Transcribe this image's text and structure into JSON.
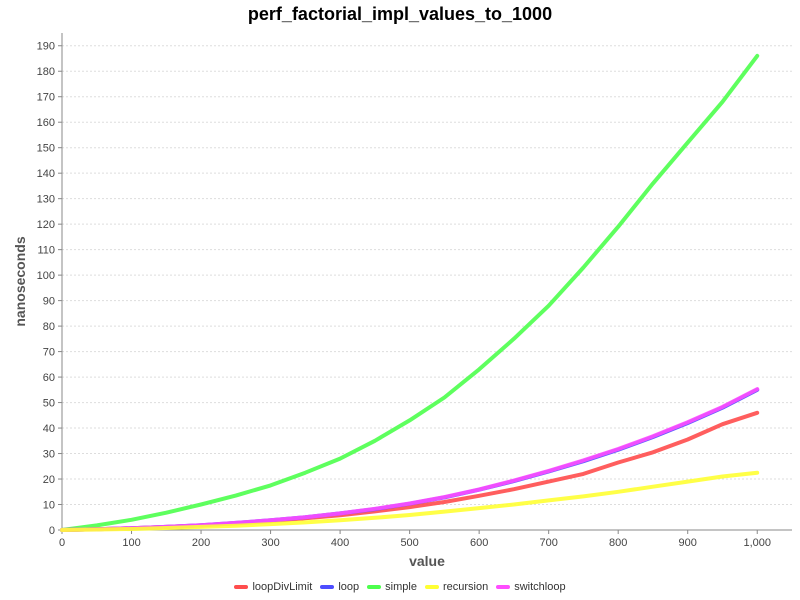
{
  "chart_data": {
    "type": "line",
    "title": "perf_factorial_impl_values_to_1000",
    "xlabel": "value",
    "ylabel": "nanoseconds",
    "xlim": [
      0,
      1050
    ],
    "ylim": [
      0,
      195
    ],
    "x_ticks": [
      {
        "value": 0,
        "label": "0"
      },
      {
        "value": 100,
        "label": "100"
      },
      {
        "value": 200,
        "label": "200"
      },
      {
        "value": 300,
        "label": "300"
      },
      {
        "value": 400,
        "label": "400"
      },
      {
        "value": 500,
        "label": "500"
      },
      {
        "value": 600,
        "label": "600"
      },
      {
        "value": 700,
        "label": "700"
      },
      {
        "value": 800,
        "label": "800"
      },
      {
        "value": 900,
        "label": "900"
      },
      {
        "value": 1000,
        "label": "1,000"
      }
    ],
    "y_ticks": [
      0,
      10,
      20,
      30,
      40,
      50,
      60,
      70,
      80,
      90,
      100,
      110,
      120,
      130,
      140,
      150,
      160,
      170,
      180,
      190
    ],
    "grid": true,
    "legend_position": "bottom",
    "x": [
      0,
      50,
      100,
      150,
      200,
      250,
      300,
      350,
      400,
      450,
      500,
      550,
      600,
      650,
      700,
      750,
      800,
      850,
      900,
      950,
      1000
    ],
    "series": [
      {
        "name": "loopDivLimit",
        "color": "#ff4d4d",
        "values": [
          0,
          0.3,
          0.7,
          1.2,
          1.8,
          2.6,
          3.5,
          4.6,
          5.8,
          7.3,
          9.0,
          11.0,
          13.4,
          16.0,
          19.0,
          22.0,
          26.5,
          30.5,
          35.5,
          41.5,
          46
        ]
      },
      {
        "name": "loop",
        "color": "#4d4dff",
        "values": [
          0,
          0.3,
          0.7,
          1.2,
          1.9,
          2.8,
          3.8,
          5.0,
          6.5,
          8.2,
          10.3,
          12.8,
          15.8,
          19.2,
          23.0,
          27.0,
          31.5,
          36.5,
          42.0,
          48.0,
          55
        ]
      },
      {
        "name": "simple",
        "color": "#4dff4d",
        "values": [
          0,
          1.8,
          4.0,
          6.8,
          10.0,
          13.5,
          17.5,
          22.5,
          28.0,
          35.0,
          43.0,
          52.0,
          63.0,
          75.0,
          88.0,
          103.0,
          119.0,
          136.0,
          152.0,
          168.0,
          186
        ]
      },
      {
        "name": "recursion",
        "color": "#ffff33",
        "values": [
          0,
          0.2,
          0.4,
          0.8,
          1.2,
          1.7,
          2.3,
          3.0,
          3.8,
          4.8,
          5.9,
          7.2,
          8.6,
          10.0,
          11.6,
          13.2,
          15.0,
          17.0,
          19.0,
          21.0,
          22.5
        ]
      },
      {
        "name": "switchloop",
        "color": "#ff4dff",
        "values": [
          0,
          0.3,
          0.7,
          1.2,
          1.9,
          2.8,
          3.8,
          5.0,
          6.5,
          8.3,
          10.4,
          12.9,
          15.9,
          19.4,
          23.2,
          27.3,
          31.8,
          36.8,
          42.3,
          48.3,
          55.3
        ]
      }
    ]
  }
}
